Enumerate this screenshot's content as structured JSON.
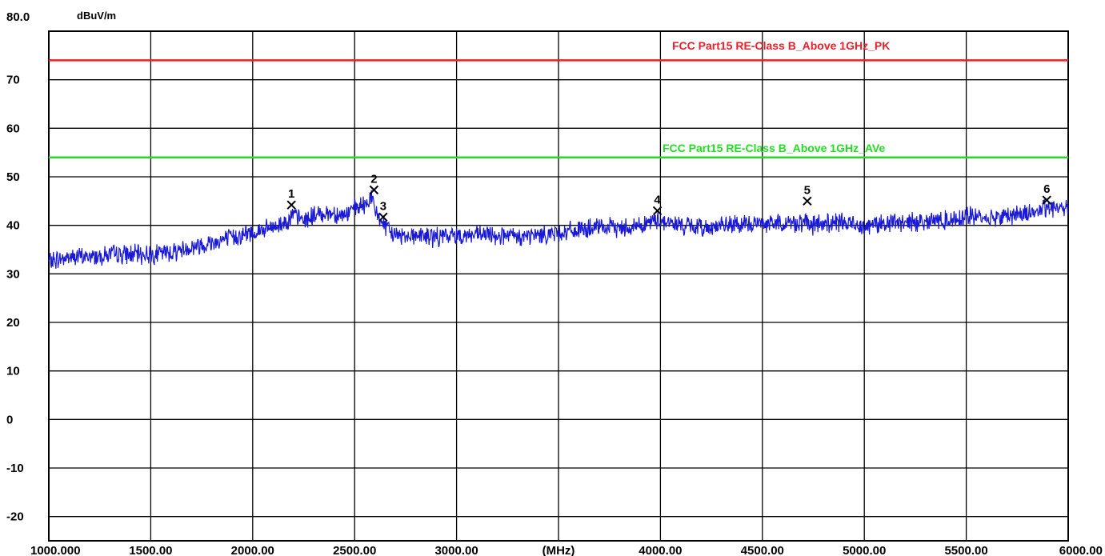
{
  "chart_data": {
    "type": "line",
    "y_unit": "dBuV/m",
    "x_unit": "(MHz)",
    "x_range": [
      1000,
      6000
    ],
    "y_range": [
      -25,
      80
    ],
    "y_ticks": [
      {
        "value": 80,
        "label": "80.0"
      },
      {
        "value": 70,
        "label": "70"
      },
      {
        "value": 60,
        "label": "60"
      },
      {
        "value": 50,
        "label": "50"
      },
      {
        "value": 40,
        "label": "40"
      },
      {
        "value": 30,
        "label": "30"
      },
      {
        "value": 20,
        "label": "20"
      },
      {
        "value": 10,
        "label": "10"
      },
      {
        "value": 0,
        "label": "0"
      },
      {
        "value": -10,
        "label": "-10"
      },
      {
        "value": -20,
        "label": "-20"
      }
    ],
    "x_ticks": [
      {
        "value": 1000,
        "label": "1000.000"
      },
      {
        "value": 1500,
        "label": "1500.00"
      },
      {
        "value": 2000,
        "label": "2000.00"
      },
      {
        "value": 2500,
        "label": "2500.00"
      },
      {
        "value": 3000,
        "label": "3000.00"
      },
      {
        "value": 3500,
        "label": "(MHz)"
      },
      {
        "value": 4000,
        "label": "4000.00"
      },
      {
        "value": 4500,
        "label": "4500.00"
      },
      {
        "value": 5000,
        "label": "5000.00"
      },
      {
        "value": 5500,
        "label": "5500.00"
      },
      {
        "value": 6000,
        "label": "6000.00"
      }
    ],
    "grid": true,
    "limit_lines": [
      {
        "name": "FCC Part15 RE-Class B_Above 1GHz_PK",
        "value": 74,
        "color": "#e8202a"
      },
      {
        "name": "FCC Part15 RE-Class B_Above 1GHz_AVe",
        "value": 54,
        "color": "#22dd22"
      }
    ],
    "series": [
      {
        "color": "#1a1ad6",
        "x": [
          1000,
          1100,
          1200,
          1300,
          1400,
          1500,
          1600,
          1700,
          1800,
          1900,
          2000,
          2100,
          2150,
          2200,
          2250,
          2300,
          2350,
          2400,
          2450,
          2500,
          2550,
          2580,
          2600,
          2630,
          2660,
          2700,
          2800,
          2900,
          3000,
          3100,
          3200,
          3300,
          3400,
          3500,
          3600,
          3700,
          3800,
          3900,
          3980,
          4000,
          4100,
          4200,
          4300,
          4400,
          4500,
          4600,
          4700,
          4750,
          4800,
          4900,
          5000,
          5100,
          5200,
          5300,
          5400,
          5500,
          5600,
          5700,
          5800,
          5900,
          6000
        ],
        "y": [
          32.5,
          33.5,
          33.5,
          34,
          34,
          34,
          34.5,
          35.5,
          36.5,
          37.5,
          38.5,
          39.5,
          40.5,
          42,
          41,
          42,
          42.5,
          42.5,
          42,
          43.5,
          44,
          46,
          43,
          41,
          39,
          38,
          38,
          37.5,
          38,
          38,
          38,
          37.5,
          38,
          38.5,
          39,
          39.5,
          39.5,
          40,
          41,
          41,
          40,
          39.5,
          40,
          40,
          40.5,
          40.5,
          40.5,
          40,
          40.5,
          40.5,
          40,
          40.5,
          40.5,
          41,
          41,
          42,
          41.5,
          42,
          42.5,
          43.5,
          44
        ]
      }
    ],
    "markers": [
      {
        "label": "1",
        "x": 2190,
        "y": 44.2
      },
      {
        "label": "2",
        "x": 2595,
        "y": 47.3
      },
      {
        "label": "3",
        "x": 2640,
        "y": 41.7
      },
      {
        "label": "4",
        "x": 3985,
        "y": 43.0
      },
      {
        "label": "5",
        "x": 4720,
        "y": 45.0
      },
      {
        "label": "6",
        "x": 5895,
        "y": 45.2
      }
    ]
  }
}
